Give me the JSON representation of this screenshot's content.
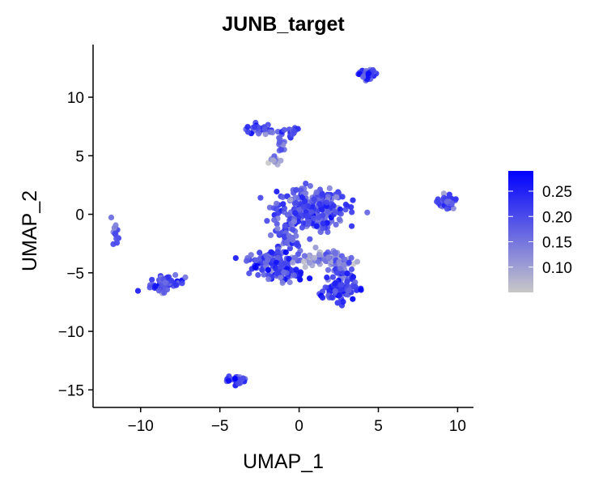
{
  "chart_data": {
    "type": "scatter",
    "title": "JUNB_target",
    "xlabel": "UMAP_1",
    "ylabel": "UMAP_2",
    "xlim": [
      -13,
      11
    ],
    "ylim": [
      -16.5,
      14.5
    ],
    "xticks": [
      -10,
      -5,
      0,
      5,
      10
    ],
    "xtick_labels": [
      "−10",
      "−5",
      "0",
      "5",
      "10"
    ],
    "yticks": [
      -15,
      -10,
      -5,
      0,
      5,
      10
    ],
    "ytick_labels": [
      "−15",
      "−10",
      "−5",
      "0",
      "5",
      "10"
    ],
    "grid": false,
    "color_scale": {
      "low_color": "#c8c8c8",
      "high_color": "#0000ff",
      "min": 0.05,
      "max": 0.29,
      "ticks": [
        0.1,
        0.15,
        0.2,
        0.25
      ],
      "tick_labels": [
        "0.10",
        "0.15",
        "0.20",
        "0.25"
      ]
    },
    "legend_placement": "right",
    "clusters": [
      {
        "cx": 4.3,
        "cy": 12.0,
        "sx": 0.28,
        "sy": 0.22,
        "n": 45,
        "v": 0.21
      },
      {
        "cx": -2.4,
        "cy": 7.2,
        "sx": 0.55,
        "sy": 0.25,
        "n": 30,
        "v": 0.19
      },
      {
        "cx": -0.6,
        "cy": 7.0,
        "sx": 0.35,
        "sy": 0.2,
        "n": 18,
        "v": 0.21
      },
      {
        "cx": -1.1,
        "cy": 6.0,
        "sx": 0.15,
        "sy": 0.45,
        "n": 12,
        "v": 0.17
      },
      {
        "cx": -1.5,
        "cy": 4.6,
        "sx": 0.2,
        "sy": 0.25,
        "n": 10,
        "v": 0.12
      },
      {
        "cx": -11.6,
        "cy": -1.4,
        "sx": 0.12,
        "sy": 0.5,
        "n": 14,
        "v": 0.18
      },
      {
        "cx": -8.3,
        "cy": -6.0,
        "sx": 0.55,
        "sy": 0.35,
        "n": 55,
        "v": 0.2
      },
      {
        "cx": -3.9,
        "cy": -14.1,
        "sx": 0.3,
        "sy": 0.2,
        "n": 22,
        "v": 0.2
      },
      {
        "cx": 9.3,
        "cy": 1.1,
        "sx": 0.3,
        "sy": 0.3,
        "n": 35,
        "v": 0.2
      },
      {
        "cx": 0.7,
        "cy": 0.5,
        "sx": 1.1,
        "sy": 0.9,
        "n": 300,
        "v": 0.19
      },
      {
        "cx": -0.8,
        "cy": -1.8,
        "sx": 0.35,
        "sy": 1.0,
        "n": 50,
        "v": 0.18
      },
      {
        "cx": -1.9,
        "cy": -3.9,
        "sx": 0.7,
        "sy": 0.4,
        "n": 90,
        "v": 0.2
      },
      {
        "cx": -0.9,
        "cy": -5.1,
        "sx": 0.6,
        "sy": 0.35,
        "n": 60,
        "v": 0.22
      },
      {
        "cx": 1.5,
        "cy": -3.8,
        "sx": 0.8,
        "sy": 0.35,
        "n": 70,
        "v": 0.12
      },
      {
        "cx": 2.7,
        "cy": -4.8,
        "sx": 0.35,
        "sy": 0.6,
        "n": 35,
        "v": 0.16
      },
      {
        "cx": 2.6,
        "cy": -6.5,
        "sx": 0.5,
        "sy": 0.5,
        "n": 90,
        "v": 0.22
      }
    ]
  }
}
